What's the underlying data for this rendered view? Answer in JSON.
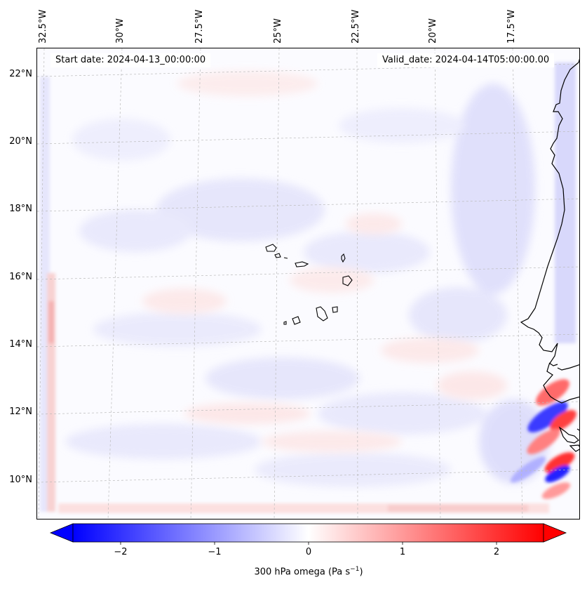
{
  "map": {
    "start_date": "Start date: 2024-04-13_00:00:00",
    "valid_date": "Valid_date: 2024-04-14T05:00:00.00",
    "lon_labels": [
      "32.5°W",
      "30°W",
      "27.5°W",
      "25°W",
      "22.5°W",
      "20°W",
      "17.5°W"
    ],
    "lat_labels": [
      "22°N",
      "20°N",
      "18°N",
      "16°N",
      "14°N",
      "12°N",
      "10°N"
    ],
    "colors": {
      "negative": "#0000ff",
      "neutral": "#ffffff",
      "positive": "#ff0000",
      "coastline": "#000000"
    }
  },
  "colorbar": {
    "ticks": [
      "−2",
      "−1",
      "0",
      "1",
      "2"
    ],
    "label": "300 hPa omega (Pa s",
    "label_superscript": "−1",
    "label_close": ")"
  }
}
